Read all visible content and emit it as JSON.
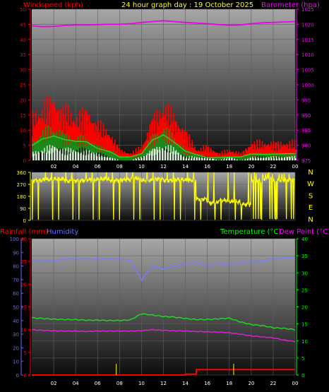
{
  "header": {
    "title": "24 hour graph day : 19 October 2025",
    "left_label": "Windspeed (kph)",
    "right_label": "Barometer (hpa)"
  },
  "colors": {
    "wind_axis": "#ff0000",
    "baro_axis": "#ff00ff",
    "direction_axis": "#ffff00",
    "rain_axis": "#ff0000",
    "humidity_axis": "#6a6aff",
    "temp_axis": "#00ff00",
    "title": "#ffff00"
  },
  "chart_data": [
    {
      "type": "area",
      "name": "wind-barometer",
      "x_ticks": [
        "02",
        "04",
        "06",
        "08",
        "10",
        "12",
        "14",
        "16",
        "18",
        "20",
        "22",
        "00"
      ],
      "left_axis": {
        "label": "Windspeed (kph)",
        "ticks": [
          "0",
          "5",
          "10",
          "15",
          "20",
          "25",
          "30",
          "35",
          "40",
          "45",
          "50"
        ],
        "ylim": [
          0,
          50
        ]
      },
      "right_axis": {
        "label": "Barometer (hpa)",
        "ticks": [
          "975",
          "980",
          "985",
          "990",
          "995",
          "1000",
          "1005",
          "1010",
          "1015",
          "1020",
          "1025"
        ],
        "ylim": [
          975,
          1025
        ]
      },
      "x": [
        0,
        1,
        2,
        3,
        4,
        5,
        6,
        7,
        8,
        9,
        10,
        11,
        12,
        13,
        14,
        15,
        16,
        17,
        18,
        19,
        20,
        21,
        22,
        23,
        24
      ],
      "series": {
        "gust": [
          12,
          15,
          17,
          14,
          12,
          14,
          10,
          8,
          3,
          2,
          4,
          12,
          15,
          12,
          8,
          3,
          4,
          2,
          3,
          2,
          5,
          5,
          5,
          5,
          5
        ],
        "wind_avg": [
          5,
          8,
          9,
          7,
          6,
          6,
          4,
          3,
          1,
          1,
          2,
          7,
          9,
          6,
          3,
          2,
          1,
          1,
          1,
          1,
          2,
          2,
          2,
          2,
          2
        ],
        "wind_min": [
          2,
          3,
          4,
          3,
          3,
          3,
          2,
          1,
          0,
          0,
          1,
          3,
          4,
          3,
          1,
          1,
          1,
          0,
          1,
          0,
          1,
          1,
          1,
          1,
          1
        ],
        "barometer": [
          1019.5,
          1019.2,
          1019.3,
          1019.6,
          1019.8,
          1019.8,
          1019.9,
          1020.0,
          1020.0,
          1020.2,
          1020.6,
          1020.9,
          1021.2,
          1020.9,
          1020.6,
          1020.4,
          1020.2,
          1019.9,
          1019.7,
          1019.8,
          1020.2,
          1020.5,
          1020.6,
          1020.8,
          1020.9
        ]
      }
    },
    {
      "type": "line",
      "name": "wind-direction",
      "left_axis": {
        "ticks": [
          "0",
          "90",
          "180",
          "270",
          "360"
        ],
        "ylim": [
          0,
          360
        ]
      },
      "compass_labels": [
        "N",
        "W",
        "S",
        "E",
        "N"
      ],
      "x": [
        0,
        1,
        2,
        3,
        4,
        5,
        6,
        7,
        8,
        9,
        10,
        11,
        12,
        13,
        14,
        15,
        16,
        17,
        18,
        19,
        20,
        21,
        22,
        23,
        24
      ],
      "direction": [
        300,
        305,
        310,
        295,
        300,
        305,
        310,
        300,
        305,
        315,
        300,
        310,
        300,
        305,
        300,
        160,
        130,
        150,
        140,
        120,
        300,
        310,
        300,
        305,
        310
      ]
    },
    {
      "type": "line",
      "name": "rain-humidity-temperature",
      "x_ticks": [
        "02",
        "04",
        "06",
        "08",
        "10",
        "12",
        "14",
        "16",
        "18",
        "20",
        "22",
        "00"
      ],
      "left_axis": {
        "label": "Rainfall (mm)",
        "ticks": [
          "0",
          "5",
          "10",
          "15",
          "20",
          "25",
          "30"
        ],
        "ylim": [
          0,
          30
        ]
      },
      "humidity_axis": {
        "label": "Humidity",
        "ticks": [
          "0",
          "10",
          "20",
          "30",
          "40",
          "50",
          "60",
          "70",
          "80",
          "90",
          "100"
        ],
        "ylim": [
          0,
          100
        ]
      },
      "right_axis": {
        "label_temp": "Temperature (°C)",
        "label_dew": "Dew Point (°C)",
        "ticks": [
          "0",
          "5",
          "10",
          "15",
          "20",
          "25",
          "30",
          "35",
          "40"
        ],
        "ylim": [
          0,
          40
        ]
      },
      "x": [
        0,
        1,
        2,
        3,
        4,
        5,
        6,
        7,
        8,
        9,
        10,
        11,
        12,
        13,
        14,
        15,
        16,
        17,
        18,
        19,
        20,
        21,
        22,
        23,
        24
      ],
      "series": {
        "humidity": [
          84,
          84,
          84,
          85,
          85,
          85,
          85,
          85,
          85,
          84,
          70,
          80,
          78,
          80,
          81,
          83,
          80,
          82,
          81,
          83,
          83,
          84,
          85,
          86,
          86
        ],
        "temperature": [
          16.8,
          16.6,
          16.4,
          16.3,
          16.3,
          16.1,
          16.1,
          16.0,
          16.0,
          16.2,
          18.0,
          17.6,
          17.2,
          17.0,
          16.6,
          16.3,
          16.3,
          16.5,
          16.7,
          15.6,
          14.8,
          14.5,
          13.9,
          13.7,
          13.3
        ],
        "dew_point": [
          13.3,
          13.1,
          13.0,
          12.9,
          12.9,
          12.8,
          12.9,
          12.9,
          12.9,
          12.9,
          13.0,
          13.3,
          13.1,
          13.0,
          12.9,
          12.8,
          12.7,
          12.6,
          12.4,
          12.0,
          11.5,
          11.2,
          10.9,
          10.3,
          9.8
        ],
        "rainfall": [
          0,
          0,
          0,
          0,
          0,
          0,
          0,
          0,
          0,
          0,
          0,
          0,
          0,
          0,
          0.2,
          1.2,
          1.2,
          1.2,
          1.2,
          1.2,
          1.2,
          1.2,
          1.2,
          1.2,
          1.2
        ]
      }
    }
  ]
}
